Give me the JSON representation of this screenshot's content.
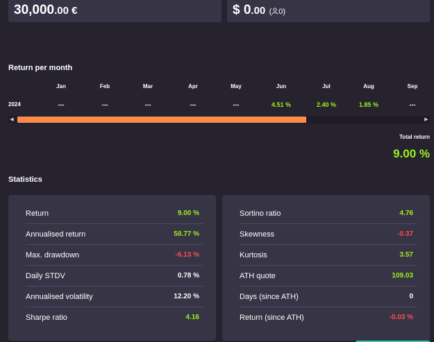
{
  "cards": {
    "left": {
      "amount_main": "30,000",
      "amount_decimal": ".00 €"
    },
    "right": {
      "amount_main": "$ 0",
      "amount_decimal": ".00",
      "followers": "0"
    }
  },
  "return_per_month": {
    "title": "Return per month",
    "months": [
      "Jan",
      "Feb",
      "Mar",
      "Apr",
      "May",
      "Jun",
      "Jul",
      "Aug",
      "Sep"
    ],
    "year": "2024",
    "values": [
      "---",
      "---",
      "---",
      "---",
      "---",
      "4.51 %",
      "2.40 %",
      "1.85 %",
      "---"
    ],
    "positive_color": "#9ef01a",
    "total_label": "Total return",
    "total_value": "9.00 %"
  },
  "scrollbar": {
    "thumb_color": "#ff8c4a"
  },
  "statistics": {
    "title": "Statistics",
    "left": [
      {
        "label": "Return",
        "value": "9.00 %",
        "tone": "green"
      },
      {
        "label": "Annualised return",
        "value": "50.77 %",
        "tone": "green"
      },
      {
        "label": "Max. drawdown",
        "value": "-6.13 %",
        "tone": "red"
      },
      {
        "label": "Daily STDV",
        "value": "0.78 %",
        "tone": "white"
      },
      {
        "label": "Annualised volatility",
        "value": "12.20 %",
        "tone": "white"
      },
      {
        "label": "Sharpe ratio",
        "value": "4.16",
        "tone": "green"
      }
    ],
    "right": [
      {
        "label": "Sortino ratio",
        "value": "4.76",
        "tone": "green"
      },
      {
        "label": "Skewness",
        "value": "-0.37",
        "tone": "red"
      },
      {
        "label": "Kurtosis",
        "value": "3.57",
        "tone": "green"
      },
      {
        "label": "ATH quote",
        "value": "109.03",
        "tone": "green"
      },
      {
        "label": "Days (since ATH)",
        "value": "0",
        "tone": "white"
      },
      {
        "label": "Return (since ATH)",
        "value": "-0.03 %",
        "tone": "red"
      }
    ]
  },
  "icons": {
    "followers": "person-outline-icon",
    "scroll_left": "triangle-left-icon",
    "scroll_right": "triangle-right-icon"
  }
}
